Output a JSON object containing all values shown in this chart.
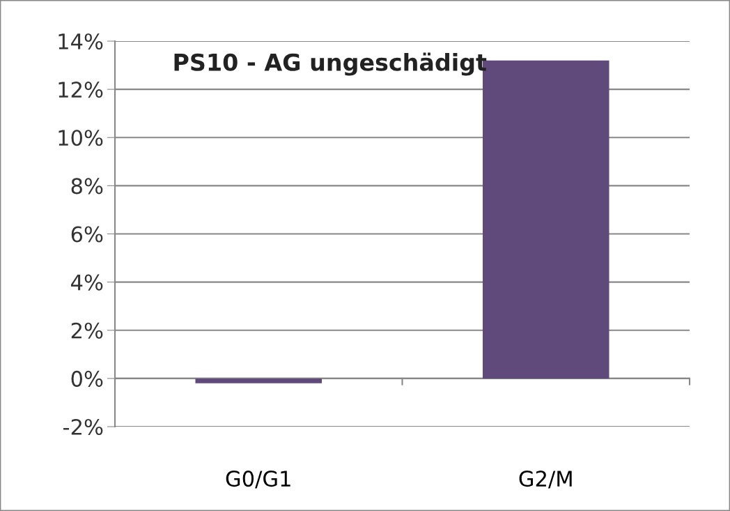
{
  "chart_data": {
    "type": "bar",
    "title": "PS10 - AG ungeschädigt",
    "categories": [
      "G0/G1",
      "G2/M"
    ],
    "values": [
      -0.2,
      13.2
    ],
    "color": "#604a7b",
    "ylim": [
      -2,
      14
    ],
    "yticks": [
      {
        "value": -2,
        "label": "-2%"
      },
      {
        "value": 0,
        "label": "0%"
      },
      {
        "value": 2,
        "label": "2%"
      },
      {
        "value": 4,
        "label": "4%"
      },
      {
        "value": 6,
        "label": "6%"
      },
      {
        "value": 8,
        "label": "8%"
      },
      {
        "value": 10,
        "label": "10%"
      },
      {
        "value": 12,
        "label": "12%"
      },
      {
        "value": 14,
        "label": "14%"
      }
    ],
    "grid": "y",
    "legend": false
  }
}
